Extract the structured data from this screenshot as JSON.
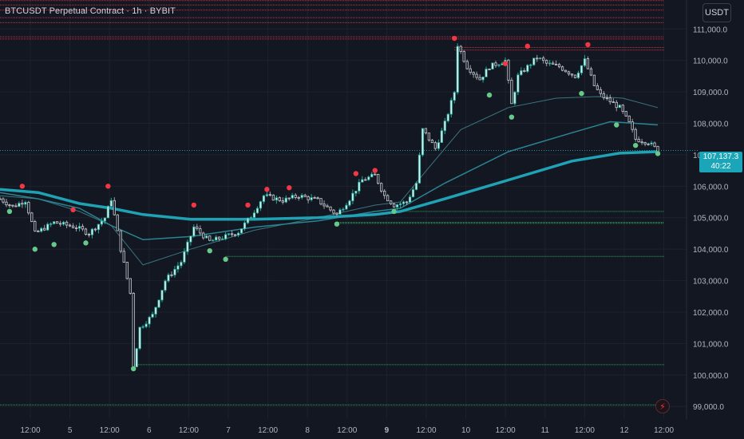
{
  "header": {
    "title": "BTCUSDT Perpetual Contract · 1h · BYBIT",
    "currency_label": "USDT"
  },
  "last_price": {
    "value": "107,137.3",
    "countdown": "40:22"
  },
  "alert_icon": "lightning-icon",
  "colors": {
    "background": "#131722",
    "grid": "#1e222d",
    "up": "#26a69a",
    "down": "#ef5350",
    "candle_up_fill": "#d8f3ef",
    "candle_down_fill": "#131722",
    "ema_main": "#1fa2b3",
    "ema_mid": "#2a8592",
    "ema_fast": "#3e7f8a",
    "resistance": "#f23645",
    "support": "#3fbf6a",
    "last_price_line": "#1aa6b8"
  },
  "chart_data": {
    "type": "candlestick",
    "title": "BTCUSDT Perpetual Contract · 1h · BYBIT",
    "y_axis": {
      "currency": "USDT",
      "ticks": [
        "111,000.0",
        "110,000.0",
        "109,000.0",
        "108,000.0",
        "107,000.0",
        "106,000.0",
        "105,000.0",
        "104,000.0",
        "103,000.0",
        "102,000.0",
        "101,000.0",
        "100,000.0",
        "99,000.0"
      ],
      "tick_values": [
        111000,
        110000,
        109000,
        108000,
        107000,
        106000,
        105000,
        104000,
        103000,
        102000,
        101000,
        100000,
        99000
      ],
      "range": [
        98600,
        111920
      ]
    },
    "x_axis": {
      "ticks": [
        "12:00",
        "5",
        "12:00",
        "6",
        "12:00",
        "7",
        "12:00",
        "8",
        "12:00",
        "9",
        "12:00",
        "10",
        "12:00",
        "11",
        "12:00",
        "12",
        "12:00"
      ],
      "bold": [
        "9"
      ],
      "range": [
        0,
        208
      ]
    },
    "key_points": [
      [
        0,
        105600
      ],
      [
        4,
        105350
      ],
      [
        8,
        105550
      ],
      [
        11,
        104500
      ],
      [
        17,
        104850
      ],
      [
        24,
        104700
      ],
      [
        28,
        104500
      ],
      [
        33,
        105000
      ],
      [
        35,
        105600
      ],
      [
        38,
        104000
      ],
      [
        41,
        102600
      ],
      [
        42,
        100300
      ],
      [
        44,
        101500
      ],
      [
        48,
        101900
      ],
      [
        52,
        103000
      ],
      [
        57,
        103600
      ],
      [
        61,
        104700
      ],
      [
        66,
        104250
      ],
      [
        71,
        104400
      ],
      [
        75,
        104550
      ],
      [
        79,
        105050
      ],
      [
        83,
        105700
      ],
      [
        89,
        105550
      ],
      [
        94,
        105700
      ],
      [
        100,
        105550
      ],
      [
        106,
        105100
      ],
      [
        110,
        105600
      ],
      [
        114,
        106200
      ],
      [
        118,
        106350
      ],
      [
        121,
        105700
      ],
      [
        124,
        105400
      ],
      [
        128,
        105500
      ],
      [
        131,
        106100
      ],
      [
        133,
        107800
      ],
      [
        137,
        107200
      ],
      [
        140,
        108000
      ],
      [
        143,
        109000
      ],
      [
        144,
        110500
      ],
      [
        147,
        109800
      ],
      [
        151,
        109400
      ],
      [
        154,
        109800
      ],
      [
        159,
        110000
      ],
      [
        161,
        108600
      ],
      [
        163,
        109500
      ],
      [
        165,
        109700
      ],
      [
        169,
        110100
      ],
      [
        172,
        109900
      ],
      [
        176,
        109800
      ],
      [
        181,
        109500
      ],
      [
        184,
        110000
      ],
      [
        187,
        109200
      ],
      [
        189,
        108900
      ],
      [
        192,
        108700
      ],
      [
        195,
        108500
      ],
      [
        198,
        108000
      ],
      [
        200,
        107500
      ],
      [
        204,
        107400
      ],
      [
        207,
        107140
      ]
    ],
    "ema_main": [
      [
        0,
        105900
      ],
      [
        12,
        105800
      ],
      [
        25,
        105450
      ],
      [
        35,
        105300
      ],
      [
        45,
        105100
      ],
      [
        60,
        104950
      ],
      [
        80,
        104950
      ],
      [
        100,
        105000
      ],
      [
        118,
        105100
      ],
      [
        126,
        105200
      ],
      [
        140,
        105600
      ],
      [
        160,
        106200
      ],
      [
        180,
        106800
      ],
      [
        195,
        107050
      ],
      [
        207,
        107100
      ]
    ],
    "ema_mid": [
      [
        0,
        105800
      ],
      [
        12,
        105600
      ],
      [
        25,
        105300
      ],
      [
        35,
        104750
      ],
      [
        45,
        104300
      ],
      [
        60,
        104400
      ],
      [
        80,
        104700
      ],
      [
        100,
        104900
      ],
      [
        118,
        105200
      ],
      [
        126,
        105300
      ],
      [
        140,
        106100
      ],
      [
        160,
        107100
      ],
      [
        180,
        107700
      ],
      [
        192,
        108050
      ],
      [
        200,
        108000
      ],
      [
        207,
        107950
      ]
    ],
    "ema_fast": [
      [
        0,
        105700
      ],
      [
        12,
        105600
      ],
      [
        25,
        105200
      ],
      [
        35,
        104750
      ],
      [
        45,
        103500
      ],
      [
        60,
        104000
      ],
      [
        80,
        104600
      ],
      [
        100,
        105000
      ],
      [
        118,
        105400
      ],
      [
        126,
        105500
      ],
      [
        135,
        106600
      ],
      [
        145,
        107800
      ],
      [
        160,
        108500
      ],
      [
        175,
        108800
      ],
      [
        188,
        108850
      ],
      [
        196,
        108800
      ],
      [
        207,
        108500
      ]
    ],
    "resistance_levels": [
      {
        "price": 111900,
        "x_start": 0
      },
      {
        "price": 111760,
        "x_start": 0
      },
      {
        "price": 111600,
        "x_start": 0
      },
      {
        "price": 111360,
        "x_start": 0
      },
      {
        "price": 111200,
        "x_start": 0
      },
      {
        "price": 110750,
        "x_start": 0
      },
      {
        "price": 110680,
        "x_start": 0
      },
      {
        "price": 110410,
        "x_start": 143
      },
      {
        "price": 110330,
        "x_start": 143
      }
    ],
    "support_levels": [
      {
        "price": 105200,
        "x_start": 124
      },
      {
        "price": 104850,
        "x_start": 106
      },
      {
        "price": 104820,
        "x_start": 106
      },
      {
        "price": 103770,
        "x_start": 71
      },
      {
        "price": 100330,
        "x_start": 42
      },
      {
        "price": 99050,
        "x_start": 0
      }
    ],
    "last_price": 107137.3,
    "pivot_highs": [
      [
        7,
        105900
      ],
      [
        34,
        105900
      ],
      [
        23,
        105150
      ],
      [
        61,
        105300
      ],
      [
        78,
        105300
      ],
      [
        84,
        105800
      ],
      [
        91,
        105850
      ],
      [
        112,
        106300
      ],
      [
        118,
        106400
      ],
      [
        143,
        110600
      ],
      [
        159,
        109800
      ],
      [
        166,
        110350
      ],
      [
        185,
        110400
      ]
    ],
    "pivot_lows": [
      [
        3,
        105300
      ],
      [
        11,
        104100
      ],
      [
        17,
        104250
      ],
      [
        27,
        104300
      ],
      [
        42,
        100300
      ],
      [
        66,
        104050
      ],
      [
        71,
        103780
      ],
      [
        106,
        104900
      ],
      [
        124,
        105300
      ],
      [
        154,
        109000
      ],
      [
        161,
        108300
      ],
      [
        183,
        109050
      ],
      [
        194,
        108050
      ],
      [
        200,
        107400
      ],
      [
        207,
        107140
      ]
    ]
  }
}
